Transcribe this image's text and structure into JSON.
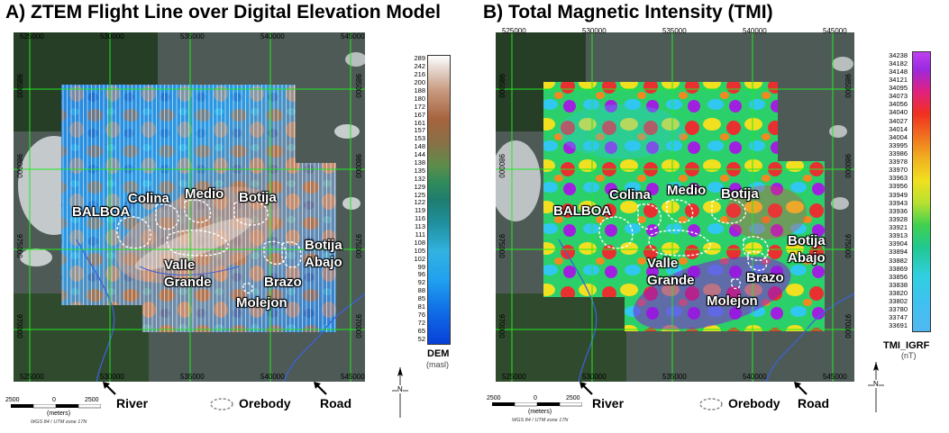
{
  "panel_a": {
    "title": "A) ZTEM Flight Line over Digital Elevation Model",
    "x_ticks": [
      "525000",
      "530000",
      "535000",
      "540000",
      "545000"
    ],
    "y_ticks": [
      "985000",
      "980000",
      "975000",
      "970000"
    ],
    "labels": {
      "balboa": "BALBOA",
      "colina": "Colina",
      "medio": "Medio",
      "botija": "Botija",
      "botija_abajo_1": "Botija",
      "botija_abajo_2": "Abajo",
      "valle": "Valle",
      "grande": "Grande",
      "brazo": "Brazo",
      "molejon": "Molejon"
    },
    "legend": {
      "title": "DEM",
      "unit": "(masl)",
      "values": [
        "289",
        "242",
        "216",
        "200",
        "188",
        "180",
        "172",
        "167",
        "161",
        "157",
        "153",
        "148",
        "144",
        "138",
        "135",
        "132",
        "129",
        "125",
        "122",
        "119",
        "116",
        "113",
        "111",
        "108",
        "105",
        "102",
        "99",
        "96",
        "92",
        "88",
        "85",
        "81",
        "76",
        "72",
        "65",
        "52"
      ]
    },
    "scale": {
      "left": "2500",
      "mid": "0",
      "right": "2500",
      "unit": "(meters)",
      "crs": "WGS 84 / UTM zone 17N"
    },
    "river": "River",
    "orebody": "Orebody",
    "road": "Road"
  },
  "panel_b": {
    "title": "B) Total Magnetic Intensity (TMI)",
    "x_ticks": [
      "525000",
      "530000",
      "535000",
      "540000",
      "545000"
    ],
    "y_ticks": [
      "985000",
      "980000",
      "975000",
      "970000"
    ],
    "labels": {
      "balboa": "BALBOA",
      "colina": "Colina",
      "medio": "Medio",
      "botija": "Botija",
      "botija_abajo_1": "Botija",
      "botija_abajo_2": "Abajo",
      "valle": "Valle",
      "grande": "Grande",
      "brazo": "Brazo",
      "molejon": "Molejon"
    },
    "legend": {
      "title": "TMI_IGRF",
      "unit": "(nT)",
      "values": [
        "34238",
        "34182",
        "34148",
        "34121",
        "34095",
        "34073",
        "34056",
        "34040",
        "34027",
        "34014",
        "34004",
        "33995",
        "33986",
        "33978",
        "33970",
        "33963",
        "33956",
        "33949",
        "33943",
        "33936",
        "33928",
        "33921",
        "33913",
        "33904",
        "33894",
        "33882",
        "33869",
        "33856",
        "33838",
        "33820",
        "33802",
        "33780",
        "33747",
        "33691"
      ]
    },
    "scale": {
      "left": "2500",
      "mid": "0",
      "right": "2500",
      "unit": "(meters)",
      "crs": "WGS 84 / UTM zone 17N"
    },
    "river": "River",
    "orebody": "Orebody",
    "road": "Road"
  },
  "north_symbol": "N"
}
